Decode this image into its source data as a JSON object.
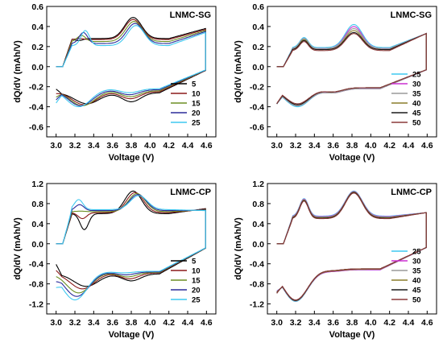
{
  "palette": {
    "1": "#000000",
    "5": "#000000",
    "10": "#8b1a1a",
    "15": "#6b8e23",
    "20": "#2b2b9a",
    "25": "#3fc9f0",
    "30": "#cc2fd1",
    "35": "#9a9a9a",
    "40": "#8a7d2a",
    "45": "#1a1a1a",
    "50": "#8b3a3a"
  },
  "chart_data": [
    {
      "type": "line",
      "title": "LNMC-SG",
      "xlabel": "Voltage (V)",
      "ylabel": "dQ/dV (mAh/V)",
      "xlim": [
        2.9,
        4.7
      ],
      "ylim": [
        -0.7,
        0.6
      ],
      "xticks": [
        "3.0",
        "3.2",
        "3.4",
        "3.6",
        "3.8",
        "4.0",
        "4.2",
        "4.4",
        "4.6"
      ],
      "yticks": [
        "-0.6",
        "-0.4",
        "-0.2",
        "0.0",
        "0.2",
        "0.4",
        "0.6"
      ],
      "legend": [
        "5",
        "10",
        "15",
        "20",
        "25"
      ],
      "legend_position": "bottom-right",
      "series": [
        {
          "name": "5",
          "c_peak": [
            3.24,
            0.26
          ],
          "c_peak2": [
            3.82,
            0.49
          ],
          "c_plat": 0.28,
          "c_end": 0.38,
          "d_low": [
            3.33,
            -0.37
          ],
          "d_dip": [
            3.8,
            -0.35
          ],
          "d_plat": -0.26,
          "d_start": -0.22
        },
        {
          "name": "10",
          "c_peak": [
            3.25,
            0.28
          ],
          "c_peak2": [
            3.82,
            0.47
          ],
          "c_plat": 0.27,
          "c_end": 0.37,
          "d_low": [
            3.3,
            -0.38
          ],
          "d_dip": [
            3.79,
            -0.32
          ],
          "d_plat": -0.25,
          "d_start": -0.26
        },
        {
          "name": "15",
          "c_peak": [
            3.27,
            0.31
          ],
          "c_peak2": [
            3.83,
            0.45
          ],
          "c_plat": 0.25,
          "c_end": 0.36,
          "d_low": [
            3.28,
            -0.39
          ],
          "d_dip": [
            3.79,
            -0.3
          ],
          "d_plat": -0.24,
          "d_start": -0.29
        },
        {
          "name": "20",
          "c_peak": [
            3.29,
            0.34
          ],
          "c_peak2": [
            3.84,
            0.43
          ],
          "c_plat": 0.23,
          "c_end": 0.35,
          "d_low": [
            3.26,
            -0.39
          ],
          "d_dip": [
            3.78,
            -0.28
          ],
          "d_plat": -0.23,
          "d_start": -0.31
        },
        {
          "name": "25",
          "c_peak": [
            3.31,
            0.36
          ],
          "c_peak2": [
            3.85,
            0.41
          ],
          "c_plat": 0.21,
          "c_end": 0.34,
          "d_low": [
            3.24,
            -0.4
          ],
          "d_dip": [
            3.78,
            -0.26
          ],
          "d_plat": -0.22,
          "d_start": -0.33
        }
      ]
    },
    {
      "type": "line",
      "title": "LNMC-SG",
      "xlabel": "Voltage (V)",
      "ylabel": "dQ/dV (mAh/V)",
      "xlim": [
        2.9,
        4.7
      ],
      "ylim": [
        -0.7,
        0.6
      ],
      "xticks": [
        "3.0",
        "3.2",
        "3.4",
        "3.6",
        "3.8",
        "4.0",
        "4.2",
        "4.4",
        "4.6"
      ],
      "yticks": [
        "-0.6",
        "-0.4",
        "-0.2",
        "0.0",
        "0.2",
        "0.4",
        "0.6"
      ],
      "legend": [
        "25",
        "30",
        "35",
        "40",
        "45",
        "50"
      ],
      "legend_position": "bottom-right",
      "series": [
        {
          "name": "25",
          "c_peak": [
            3.29,
            0.29
          ],
          "c_peak2": [
            3.82,
            0.42
          ],
          "c_plat": 0.19,
          "c_end": 0.33,
          "d_low": [
            3.22,
            -0.4
          ],
          "d_dip": [
            3.6,
            -0.26
          ],
          "d_plat": -0.22,
          "d_start": -0.33
        },
        {
          "name": "30",
          "c_peak": [
            3.29,
            0.28
          ],
          "c_peak2": [
            3.82,
            0.4
          ],
          "c_plat": 0.18,
          "c_end": 0.33,
          "d_low": [
            3.22,
            -0.39
          ],
          "d_dip": [
            3.6,
            -0.26
          ],
          "d_plat": -0.22,
          "d_start": -0.33
        },
        {
          "name": "35",
          "c_peak": [
            3.29,
            0.28
          ],
          "c_peak2": [
            3.82,
            0.38
          ],
          "c_plat": 0.18,
          "c_end": 0.33,
          "d_low": [
            3.22,
            -0.39
          ],
          "d_dip": [
            3.6,
            -0.26
          ],
          "d_plat": -0.22,
          "d_start": -0.33
        },
        {
          "name": "40",
          "c_peak": [
            3.29,
            0.27
          ],
          "c_peak2": [
            3.82,
            0.36
          ],
          "c_plat": 0.17,
          "c_end": 0.33,
          "d_low": [
            3.22,
            -0.38
          ],
          "d_dip": [
            3.6,
            -0.25
          ],
          "d_plat": -0.21,
          "d_start": -0.33
        },
        {
          "name": "45",
          "c_peak": [
            3.29,
            0.26
          ],
          "c_peak2": [
            3.82,
            0.34
          ],
          "c_plat": 0.17,
          "c_end": 0.33,
          "d_low": [
            3.22,
            -0.38
          ],
          "d_dip": [
            3.6,
            -0.25
          ],
          "d_plat": -0.21,
          "d_start": -0.33
        },
        {
          "name": "50",
          "c_peak": [
            3.29,
            0.25
          ],
          "c_peak2": [
            3.82,
            0.33
          ],
          "c_plat": 0.16,
          "c_end": 0.33,
          "d_low": [
            3.22,
            -0.37
          ],
          "d_dip": [
            3.6,
            -0.25
          ],
          "d_plat": -0.21,
          "d_start": -0.33
        }
      ]
    },
    {
      "type": "line",
      "title": "LNMC-CP",
      "xlabel": "Voltage (V)",
      "ylabel": "dQ/dV (mAh/V)",
      "xlim": [
        2.9,
        4.7
      ],
      "ylim": [
        -1.4,
        1.2
      ],
      "xticks": [
        "3.0",
        "3.2",
        "3.4",
        "3.6",
        "3.8",
        "4.0",
        "4.2",
        "4.4",
        "4.6"
      ],
      "yticks": [
        "-1.2",
        "-0.8",
        "-0.4",
        "0.0",
        "0.4",
        "0.8",
        "1.2"
      ],
      "legend": [
        "5",
        "10",
        "15",
        "20",
        "25"
      ],
      "legend_position": "bottom-right",
      "series": [
        {
          "name": "5",
          "c_peak": [
            3.3,
            0.28
          ],
          "c_peak2": [
            3.82,
            1.05
          ],
          "c_plat": 0.6,
          "c_end": 0.7,
          "d_low": [
            3.32,
            -0.85
          ],
          "d_dip": [
            3.8,
            -0.74
          ],
          "d_plat": -0.6,
          "d_start": -0.4
        },
        {
          "name": "10",
          "c_peak": [
            3.28,
            0.5
          ],
          "c_peak2": [
            3.84,
            1.02
          ],
          "c_plat": 0.62,
          "c_end": 0.69,
          "d_low": [
            3.28,
            -0.9
          ],
          "d_dip": [
            3.78,
            -0.7
          ],
          "d_plat": -0.58,
          "d_start": -0.5
        },
        {
          "name": "15",
          "c_peak": [
            3.26,
            0.65
          ],
          "c_peak2": [
            3.86,
            1.0
          ],
          "c_plat": 0.64,
          "c_end": 0.68,
          "d_low": [
            3.24,
            -0.98
          ],
          "d_dip": [
            3.76,
            -0.66
          ],
          "d_plat": -0.57,
          "d_start": -0.58
        },
        {
          "name": "20",
          "c_peak": [
            3.25,
            0.78
          ],
          "c_peak2": [
            3.87,
            0.98
          ],
          "c_plat": 0.66,
          "c_end": 0.67,
          "d_low": [
            3.22,
            -1.05
          ],
          "d_dip": [
            3.74,
            -0.62
          ],
          "d_plat": -0.56,
          "d_start": -0.64
        },
        {
          "name": "25",
          "c_peak": [
            3.24,
            0.88
          ],
          "c_peak2": [
            3.88,
            0.96
          ],
          "c_plat": 0.68,
          "c_end": 0.66,
          "d_low": [
            3.2,
            -1.12
          ],
          "d_dip": [
            3.72,
            -0.58
          ],
          "d_plat": -0.55,
          "d_start": -0.7
        }
      ]
    },
    {
      "type": "line",
      "title": "LNMC-CP",
      "xlabel": "Voltage (V)",
      "ylabel": "dQ/dV (mAh/V)",
      "xlim": [
        2.9,
        4.7
      ],
      "ylim": [
        -1.4,
        1.2
      ],
      "xticks": [
        "3.0",
        "3.2",
        "3.4",
        "3.6",
        "3.8",
        "4.0",
        "4.2",
        "4.4",
        "4.6"
      ],
      "yticks": [
        "-1.2",
        "-0.8",
        "-0.4",
        "0.0",
        "0.4",
        "0.8",
        "1.2"
      ],
      "legend": [
        "25",
        "30",
        "35",
        "40",
        "45",
        "50"
      ],
      "legend_position": "bottom-right",
      "series": [
        {
          "name": "25",
          "c_peak": [
            3.29,
            0.9
          ],
          "c_peak2": [
            3.82,
            1.05
          ],
          "c_plat": 0.55,
          "c_end": 0.62,
          "d_low": [
            3.2,
            -1.15
          ],
          "d_dip": [
            3.6,
            -0.55
          ],
          "d_plat": -0.52,
          "d_start": -0.75
        },
        {
          "name": "30",
          "c_peak": [
            3.29,
            0.89
          ],
          "c_peak2": [
            3.82,
            1.04
          ],
          "c_plat": 0.54,
          "c_end": 0.62,
          "d_low": [
            3.2,
            -1.14
          ],
          "d_dip": [
            3.6,
            -0.55
          ],
          "d_plat": -0.52,
          "d_start": -0.76
        },
        {
          "name": "35",
          "c_peak": [
            3.29,
            0.88
          ],
          "c_peak2": [
            3.82,
            1.03
          ],
          "c_plat": 0.53,
          "c_end": 0.62,
          "d_low": [
            3.2,
            -1.14
          ],
          "d_dip": [
            3.6,
            -0.54
          ],
          "d_plat": -0.51,
          "d_start": -0.77
        },
        {
          "name": "40",
          "c_peak": [
            3.29,
            0.87
          ],
          "c_peak2": [
            3.82,
            1.03
          ],
          "c_plat": 0.52,
          "c_end": 0.62,
          "d_low": [
            3.2,
            -1.13
          ],
          "d_dip": [
            3.6,
            -0.54
          ],
          "d_plat": -0.51,
          "d_start": -0.78
        },
        {
          "name": "45",
          "c_peak": [
            3.29,
            0.86
          ],
          "c_peak2": [
            3.82,
            1.02
          ],
          "c_plat": 0.51,
          "c_end": 0.62,
          "d_low": [
            3.2,
            -1.13
          ],
          "d_dip": [
            3.6,
            -0.53
          ],
          "d_plat": -0.5,
          "d_start": -0.79
        },
        {
          "name": "50",
          "c_peak": [
            3.29,
            0.85
          ],
          "c_peak2": [
            3.82,
            1.01
          ],
          "c_plat": 0.5,
          "c_end": 0.62,
          "d_low": [
            3.2,
            -1.12
          ],
          "d_dip": [
            3.6,
            -0.53
          ],
          "d_plat": -0.5,
          "d_start": -0.8
        }
      ]
    }
  ]
}
